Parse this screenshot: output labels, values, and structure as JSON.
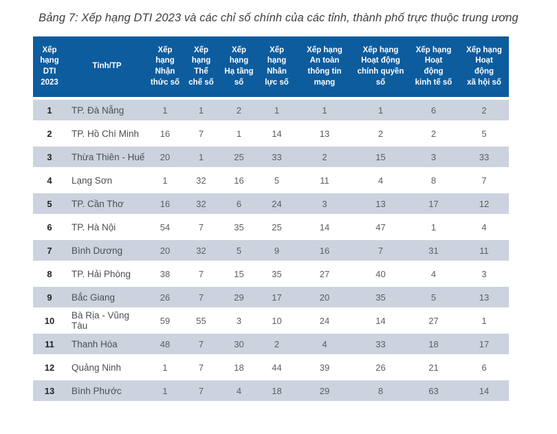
{
  "page": {
    "title": "Bảng 7: Xếp hạng DTI 2023 và các chỉ số chính của các tỉnh, thành phố trực thuộc trung ương"
  },
  "colors": {
    "header_bg": "#0d5c9e",
    "header_text": "#ffffff",
    "row_shaded_bg": "#ccd3de",
    "row_white_bg": "#ffffff",
    "title_text": "#3e3e41",
    "rank_text": "#222326",
    "province_text": "#4b4e54",
    "cell_text": "#5a5d63"
  },
  "table": {
    "columns": [
      "Xếp\nhạng\nDTI\n2023",
      "Tỉnh/TP",
      "Xếp\nhạng\nNhận\nthức số",
      "Xếp\nhạng\nThể\nchế số",
      "Xếp\nhạng\nHạ tầng\nsố",
      "Xếp\nhạng\nNhân\nlực số",
      "Xếp hạng\nAn toàn\nthông tin\nmạng",
      "Xếp hạng\nHoạt động\nchính quyền\nsố",
      "Xếp hạng\nHoạt\nđộng\nkinh tế số",
      "Xếp hạng\nHoạt\nđộng\nxã hội số"
    ],
    "rows": [
      [
        "1",
        "TP. Đà Nẵng",
        "1",
        "1",
        "2",
        "1",
        "1",
        "1",
        "6",
        "2"
      ],
      [
        "2",
        "TP. Hồ Chí Minh",
        "16",
        "7",
        "1",
        "14",
        "13",
        "2",
        "2",
        "5"
      ],
      [
        "3",
        "Thừa Thiên - Huế",
        "20",
        "1",
        "25",
        "33",
        "2",
        "15",
        "3",
        "33"
      ],
      [
        "4",
        "Lạng Sơn",
        "1",
        "32",
        "16",
        "5",
        "11",
        "4",
        "8",
        "7"
      ],
      [
        "5",
        "TP. Cần Thơ",
        "16",
        "32",
        "6",
        "24",
        "3",
        "13",
        "17",
        "12"
      ],
      [
        "6",
        "TP. Hà Nội",
        "54",
        "7",
        "35",
        "25",
        "14",
        "47",
        "1",
        "4"
      ],
      [
        "7",
        "Bình Dương",
        "20",
        "32",
        "5",
        "9",
        "16",
        "7",
        "31",
        "11"
      ],
      [
        "8",
        "TP. Hải Phòng",
        "38",
        "7",
        "15",
        "35",
        "27",
        "40",
        "4",
        "3"
      ],
      [
        "9",
        "Bắc Giang",
        "26",
        "7",
        "29",
        "17",
        "20",
        "35",
        "5",
        "13"
      ],
      [
        "10",
        "Bà Rịa - Vũng Tàu",
        "59",
        "55",
        "3",
        "10",
        "24",
        "14",
        "27",
        "1"
      ],
      [
        "11",
        "Thanh Hóa",
        "48",
        "7",
        "30",
        "2",
        "4",
        "33",
        "18",
        "17"
      ],
      [
        "12",
        "Quảng Ninh",
        "1",
        "7",
        "18",
        "44",
        "39",
        "26",
        "21",
        "6"
      ],
      [
        "13",
        "Bình Phước",
        "1",
        "7",
        "4",
        "18",
        "29",
        "8",
        "63",
        "14"
      ]
    ]
  }
}
